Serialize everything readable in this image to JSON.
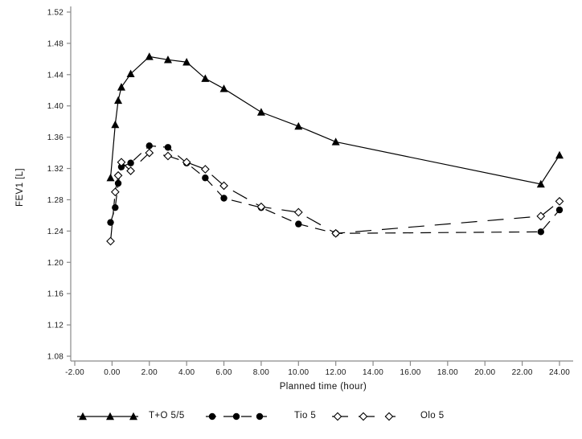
{
  "figure": {
    "background": "#ffffff",
    "axis_color": "#8a8a8a",
    "ink_color": "#000000"
  },
  "chart_data": {
    "type": "line",
    "title": "",
    "xlabel": "Planned time (hour)",
    "ylabel": "FEV1 [L]",
    "xlim": [
      -2,
      24
    ],
    "ylim": [
      1.08,
      1.52
    ],
    "grid": false,
    "legend_position": "bottom",
    "xticks": {
      "values": [
        -2,
        0,
        2,
        4,
        6,
        8,
        10,
        12,
        14,
        16,
        18,
        20,
        22,
        24
      ],
      "labels": [
        "-2.00",
        "0.00",
        "2.00",
        "4.00",
        "6.00",
        "8.00",
        "10.00",
        "12.00",
        "14.00",
        "16.00",
        "18.00",
        "20.00",
        "22.00",
        "24.00"
      ]
    },
    "yticks": {
      "values": [
        1.08,
        1.12,
        1.16,
        1.2,
        1.24,
        1.28,
        1.32,
        1.36,
        1.4,
        1.44,
        1.48,
        1.52
      ],
      "labels": [
        "1.08",
        "1.12",
        "1.16",
        "1.20",
        "1.24",
        "1.28",
        "1.32",
        "1.36",
        "1.40",
        "1.44",
        "1.48",
        "1.52"
      ]
    },
    "x": [
      -0.08,
      0.17,
      0.33,
      0.5,
      1,
      2,
      3,
      4,
      5,
      6,
      8,
      10,
      12,
      23,
      24
    ],
    "series": [
      {
        "name": "T+O 5/5",
        "marker": "filled-triangle",
        "line_style": "solid",
        "color": "#000000",
        "values": [
          1.308,
          1.376,
          1.407,
          1.424,
          1.441,
          1.463,
          1.459,
          1.456,
          1.435,
          1.422,
          1.392,
          1.374,
          1.354,
          1.3,
          1.337
        ]
      },
      {
        "name": "Tio 5",
        "marker": "filled-circle",
        "line_style": "long-dash",
        "color": "#000000",
        "values": [
          1.251,
          1.27,
          1.301,
          1.322,
          1.327,
          1.349,
          1.347,
          1.327,
          1.308,
          1.282,
          1.27,
          1.249,
          1.237,
          1.239,
          1.267
        ]
      },
      {
        "name": "Olo 5",
        "marker": "open-diamond",
        "line_style": "dash",
        "color": "#000000",
        "values": [
          1.227,
          1.29,
          1.311,
          1.328,
          1.317,
          1.34,
          1.336,
          1.328,
          1.319,
          1.298,
          1.271,
          1.264,
          1.237,
          1.259,
          1.278
        ]
      }
    ]
  }
}
